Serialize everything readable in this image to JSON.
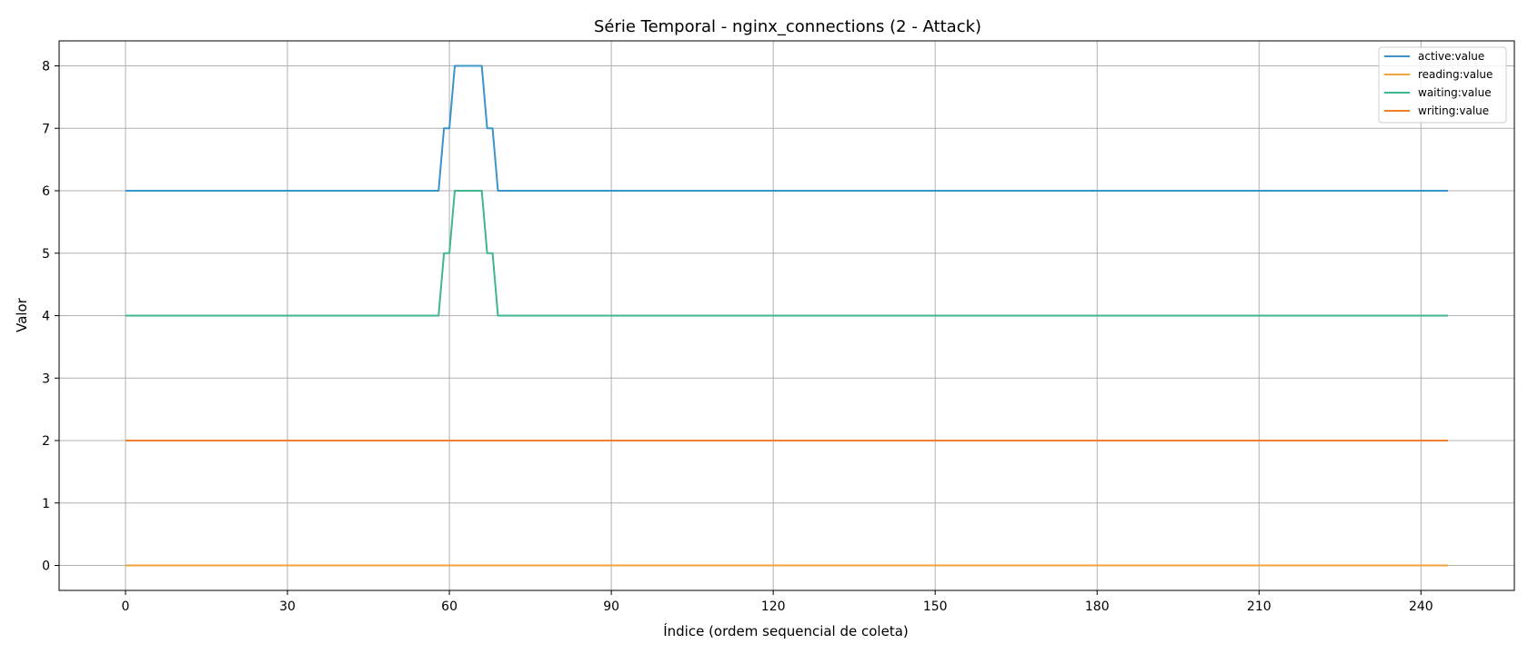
{
  "chart_data": {
    "type": "line",
    "title": "Série Temporal - nginx_connections (2 - Attack)",
    "xlabel": "Índice (ordem sequencial de coleta)",
    "ylabel": "Valor",
    "xlim": [
      -12.3,
      257.3
    ],
    "ylim": [
      -0.4,
      8.4
    ],
    "xticks": [
      0,
      30,
      60,
      90,
      120,
      150,
      180,
      210,
      240
    ],
    "yticks": [
      0,
      1,
      2,
      3,
      4,
      5,
      6,
      7,
      8
    ],
    "grid": true,
    "legend_position": "top-right",
    "series": [
      {
        "name": "active:value",
        "color": "#3b94c9",
        "x": [
          0,
          58,
          59,
          60,
          61,
          62,
          63,
          64,
          65,
          66,
          67,
          68,
          69,
          245
        ],
        "y": [
          6,
          6,
          7,
          7,
          8,
          8,
          8,
          8,
          8,
          8,
          7,
          7,
          6,
          6
        ]
      },
      {
        "name": "reading:value",
        "color": "#f2a33a",
        "x": [
          0,
          245
        ],
        "y": [
          0,
          0
        ]
      },
      {
        "name": "waiting:value",
        "color": "#41b58c",
        "x": [
          0,
          58,
          59,
          60,
          61,
          62,
          63,
          64,
          65,
          66,
          67,
          68,
          69,
          245
        ],
        "y": [
          4,
          4,
          5,
          5,
          6,
          6,
          6,
          6,
          6,
          6,
          5,
          5,
          4,
          4
        ]
      },
      {
        "name": "writing:value",
        "color": "#ee7f2d",
        "x": [
          0,
          245
        ],
        "y": [
          2,
          2
        ]
      }
    ]
  }
}
